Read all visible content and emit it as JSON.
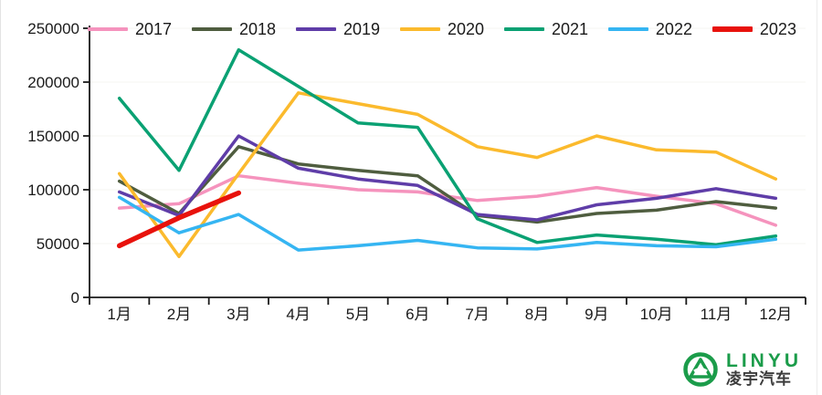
{
  "chart_data": {
    "type": "line",
    "title": "",
    "xlabel": "",
    "ylabel": "",
    "categories": [
      "1月",
      "2月",
      "3月",
      "4月",
      "5月",
      "6月",
      "7月",
      "8月",
      "9月",
      "10月",
      "11月",
      "12月"
    ],
    "series": [
      {
        "name": "2017",
        "color": "#f593bd",
        "width": 3.5,
        "values": [
          83000,
          87000,
          113000,
          106000,
          100000,
          98000,
          90000,
          94000,
          102000,
          94000,
          87000,
          67000
        ]
      },
      {
        "name": "2018",
        "color": "#4f5d3f",
        "width": 3.5,
        "values": [
          108000,
          78000,
          140000,
          124000,
          118000,
          113000,
          76000,
          70000,
          78000,
          81000,
          89000,
          83000
        ]
      },
      {
        "name": "2019",
        "color": "#5f3da8",
        "width": 3.5,
        "values": [
          98000,
          76000,
          150000,
          120000,
          110000,
          104000,
          77000,
          72000,
          86000,
          92000,
          101000,
          92000
        ]
      },
      {
        "name": "2020",
        "color": "#fbba2d",
        "width": 3.5,
        "values": [
          115000,
          38000,
          115000,
          190000,
          180000,
          170000,
          140000,
          130000,
          150000,
          137000,
          135000,
          110000
        ]
      },
      {
        "name": "2021",
        "color": "#0aa173",
        "width": 3.5,
        "values": [
          185000,
          118000,
          230000,
          196000,
          162000,
          158000,
          73000,
          51000,
          58000,
          54000,
          49000,
          57000
        ]
      },
      {
        "name": "2022",
        "color": "#35b5f2",
        "width": 3.5,
        "values": [
          93000,
          60000,
          77000,
          44000,
          48000,
          53000,
          46000,
          45000,
          51000,
          48000,
          47000,
          54000
        ]
      },
      {
        "name": "2023",
        "color": "#e8120c",
        "width": 5.5,
        "values": [
          48000,
          74000,
          97000
        ]
      }
    ],
    "ylim": [
      0,
      250000
    ],
    "yticks": [
      0,
      50000,
      100000,
      150000,
      200000,
      250000
    ],
    "ytick_labels": [
      "0",
      "50000",
      "100000",
      "150000",
      "200000",
      "250000"
    ],
    "legend_position": "top",
    "grid": false,
    "axis_color": "#1a1a1a"
  },
  "logo": {
    "name": "LINYU",
    "subtitle": "凌宇汽车",
    "brand_color": "#1b9c4a"
  }
}
